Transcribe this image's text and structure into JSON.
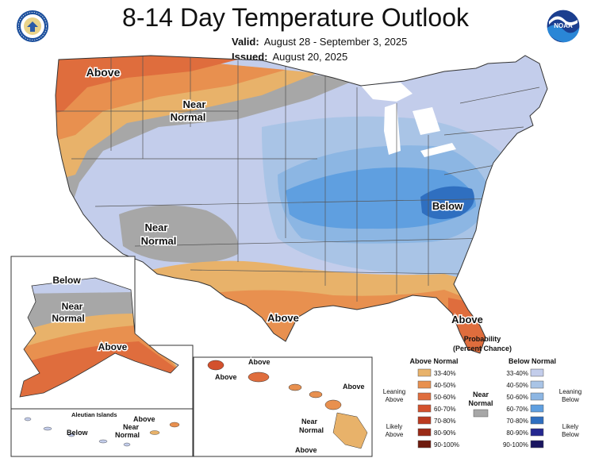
{
  "title": "8-14 Day Temperature Outlook",
  "valid_label": "Valid:",
  "valid_value": "August 28 - September 3, 2025",
  "issued_label": "Issued:",
  "issued_value": "August 20, 2025",
  "logos": {
    "left": "doc-seal-icon",
    "right": "noaa-logo-icon",
    "noaa_text": "NOAA"
  },
  "map_labels": {
    "above_nw": "Above",
    "near_normal_nw_1": "Near",
    "near_normal_nw_2": "Normal",
    "near_normal_sw_1": "Near",
    "near_normal_sw_2": "Normal",
    "below_se": "Below",
    "above_tx": "Above",
    "above_fl": "Above"
  },
  "alaska_labels": {
    "below": "Below",
    "near_1": "Near",
    "near_2": "Normal",
    "above": "Above"
  },
  "aleutian": {
    "title": "Aleutian Islands",
    "above": "Above",
    "near_1": "Near",
    "near_2": "Normal",
    "below": "Below"
  },
  "hawaii_labels": {
    "above_1": "Above",
    "above_2": "Above",
    "above_3": "Above",
    "near_1": "Near",
    "near_2": "Normal",
    "above_4": "Above"
  },
  "legend": {
    "title_1": "Probability",
    "title_2": "(Percent Chance)",
    "above_normal": "Above Normal",
    "below_normal": "Below Normal",
    "near_1": "Near",
    "near_2": "Normal",
    "leaning_above_1": "Leaning",
    "leaning_above_2": "Above",
    "likely_above_1": "Likely",
    "likely_above_2": "Above",
    "leaning_below_1": "Leaning",
    "leaning_below_2": "Below",
    "likely_below_1": "Likely",
    "likely_below_2": "Below",
    "ranges": [
      "33-40%",
      "40-50%",
      "50-60%",
      "60-70%",
      "70-80%",
      "80-90%",
      "90-100%"
    ],
    "above_colors": [
      "#e8b26a",
      "#e8904f",
      "#df6d3d",
      "#d3512d",
      "#bb3a1f",
      "#9a2a16",
      "#6e1a0d"
    ],
    "below_colors": [
      "#c3cdeb",
      "#a9c4e6",
      "#8cb6e3",
      "#5f9fe0",
      "#2f6fc0",
      "#25288f",
      "#1a1660"
    ],
    "near_color": "#a7a7a7"
  }
}
